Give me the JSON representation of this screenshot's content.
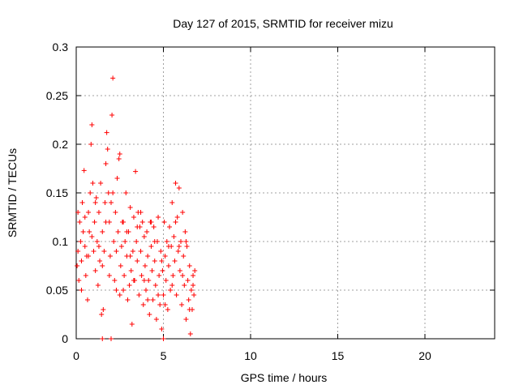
{
  "chart_data": {
    "type": "scatter",
    "title": "Day 127 of 2015, SRMTID for receiver mizu",
    "xlabel": "GPS time / hours",
    "ylabel": "SRMTID / TECUs",
    "xlim": [
      0,
      24
    ],
    "ylim": [
      0,
      0.3
    ],
    "x_ticks": [
      0,
      5,
      10,
      15,
      20
    ],
    "x_tick_labels": [
      "0",
      "5",
      "10",
      "15",
      "20"
    ],
    "y_ticks": [
      0,
      0.05,
      0.1,
      0.15,
      0.2,
      0.25,
      0.3
    ],
    "y_tick_labels": [
      "0",
      "0.05",
      "0.1",
      "0.15",
      "0.2",
      "0.25",
      "0.3"
    ],
    "grid": true,
    "marker": "+",
    "color": "#ff0000",
    "series": [
      {
        "points": [
          [
            0.05,
            0.075
          ],
          [
            0.1,
            0.09
          ],
          [
            0.15,
            0.06
          ],
          [
            0.2,
            0.12
          ],
          [
            0.25,
            0.1
          ],
          [
            0.3,
            0.08
          ],
          [
            0.35,
            0.14
          ],
          [
            0.4,
            0.11
          ],
          [
            0.45,
            0.173
          ],
          [
            0.5,
            0.095
          ],
          [
            0.55,
            0.065
          ],
          [
            0.6,
            0.085
          ],
          [
            0.65,
            0.04
          ],
          [
            0.7,
            0.13
          ],
          [
            0.75,
            0.11
          ],
          [
            0.8,
            0.15
          ],
          [
            0.85,
            0.2
          ],
          [
            0.9,
            0.22
          ],
          [
            0.95,
            0.16
          ],
          [
            1.0,
            0.09
          ],
          [
            1.05,
            0.12
          ],
          [
            1.1,
            0.07
          ],
          [
            1.15,
            0.145
          ],
          [
            1.2,
            0.1
          ],
          [
            1.25,
            0.055
          ],
          [
            1.3,
            0.13
          ],
          [
            1.35,
            0.08
          ],
          [
            1.4,
            0.16
          ],
          [
            1.45,
            0.025
          ],
          [
            1.5,
            0.11
          ],
          [
            1.55,
            0.03
          ],
          [
            1.6,
            0.09
          ],
          [
            1.65,
            0.14
          ],
          [
            1.7,
            0.18
          ],
          [
            1.75,
            0.212
          ],
          [
            1.8,
            0.195
          ],
          [
            1.85,
            0.15
          ],
          [
            1.9,
            0.12
          ],
          [
            1.95,
            0.085
          ],
          [
            2.0,
            0.14
          ],
          [
            2.05,
            0.23
          ],
          [
            2.1,
            0.268
          ],
          [
            2.15,
            0.1
          ],
          [
            2.2,
            0.06
          ],
          [
            2.25,
            0.13
          ],
          [
            2.3,
            0.05
          ],
          [
            2.35,
            0.165
          ],
          [
            2.4,
            0.11
          ],
          [
            2.45,
            0.185
          ],
          [
            2.5,
            0.19
          ],
          [
            2.55,
            0.075
          ],
          [
            2.6,
            0.095
          ],
          [
            2.65,
            0.12
          ],
          [
            2.7,
            0.05
          ],
          [
            2.75,
            0.065
          ],
          [
            2.8,
            0.1
          ],
          [
            2.85,
            0.15
          ],
          [
            2.9,
            0.085
          ],
          [
            2.95,
            0.04
          ],
          [
            3.0,
            0.11
          ],
          [
            3.05,
            0.055
          ],
          [
            3.1,
            0.135
          ],
          [
            3.15,
            0.07
          ],
          [
            3.2,
            0.015
          ],
          [
            3.25,
            0.09
          ],
          [
            3.3,
            0.125
          ],
          [
            3.35,
            0.06
          ],
          [
            3.4,
            0.172
          ],
          [
            3.45,
            0.1
          ],
          [
            3.5,
            0.08
          ],
          [
            3.55,
            0.13
          ],
          [
            3.6,
            0.045
          ],
          [
            3.65,
            0.115
          ],
          [
            3.7,
            0.09
          ],
          [
            3.75,
            0.065
          ],
          [
            3.8,
            0.12
          ],
          [
            3.85,
            0.035
          ],
          [
            3.9,
            0.105
          ],
          [
            3.95,
            0.075
          ],
          [
            4.0,
            0.05
          ],
          [
            4.05,
            0.11
          ],
          [
            4.1,
            0.085
          ],
          [
            4.15,
            0.06
          ],
          [
            4.2,
            0.025
          ],
          [
            4.25,
            0.12
          ],
          [
            4.3,
            0.095
          ],
          [
            4.35,
            0.07
          ],
          [
            4.4,
            0.04
          ],
          [
            4.45,
            0.115
          ],
          [
            4.5,
            0.08
          ],
          [
            4.55,
            0.055
          ],
          [
            4.6,
            0.02
          ],
          [
            4.65,
            0.1
          ],
          [
            4.7,
            0.125
          ],
          [
            4.75,
            0.065
          ],
          [
            4.8,
            0.035
          ],
          [
            4.85,
            0.09
          ],
          [
            4.9,
            0.01
          ],
          [
            4.95,
            0.07
          ],
          [
            5.0,
            0.045
          ],
          [
            5.05,
            0.12
          ],
          [
            5.1,
            0.085
          ],
          [
            5.15,
            0.06
          ],
          [
            5.2,
            0.1
          ],
          [
            5.25,
            0.03
          ],
          [
            5.3,
            0.075
          ],
          [
            5.35,
            0.115
          ],
          [
            5.4,
            0.05
          ],
          [
            5.45,
            0.095
          ],
          [
            5.5,
            0.14
          ],
          [
            5.55,
            0.065
          ],
          [
            5.6,
            0.105
          ],
          [
            5.65,
            0.08
          ],
          [
            5.7,
            0.16
          ],
          [
            5.75,
            0.045
          ],
          [
            5.8,
            0.125
          ],
          [
            5.85,
            0.09
          ],
          [
            5.9,
            0.155
          ],
          [
            5.95,
            0.07
          ],
          [
            6.0,
            0.1
          ],
          [
            6.05,
            0.035
          ],
          [
            6.1,
            0.13
          ],
          [
            6.15,
            0.085
          ],
          [
            6.2,
            0.055
          ],
          [
            6.25,
            0.11
          ],
          [
            6.3,
            0.02
          ],
          [
            6.35,
            0.095
          ],
          [
            6.4,
            0.06
          ],
          [
            6.45,
            0.04
          ],
          [
            6.5,
            0.075
          ],
          [
            6.55,
            0.005
          ],
          [
            6.6,
            0.05
          ],
          [
            6.65,
            0.03
          ],
          [
            6.7,
            0.065
          ],
          [
            6.75,
            0.045
          ],
          [
            6.8,
            0.07
          ],
          [
            0.1,
            0.13
          ],
          [
            0.3,
            0.05
          ],
          [
            0.5,
            0.125
          ],
          [
            0.7,
            0.085
          ],
          [
            0.9,
            0.105
          ],
          [
            1.1,
            0.14
          ],
          [
            1.3,
            0.095
          ],
          [
            1.5,
            0.075
          ],
          [
            1.7,
            0.12
          ],
          [
            1.9,
            0.065
          ],
          [
            2.1,
            0.15
          ],
          [
            2.3,
            0.09
          ],
          [
            2.5,
            0.045
          ],
          [
            2.7,
            0.12
          ],
          [
            2.9,
            0.11
          ],
          [
            3.1,
            0.085
          ],
          [
            3.3,
            0.06
          ],
          [
            3.5,
            0.115
          ],
          [
            3.7,
            0.13
          ],
          [
            3.9,
            0.06
          ],
          [
            4.1,
            0.04
          ],
          [
            4.3,
            0.12
          ],
          [
            4.5,
            0.1
          ],
          [
            4.7,
            0.045
          ],
          [
            4.9,
            0.08
          ],
          [
            5.1,
            0.035
          ],
          [
            5.3,
            0.095
          ],
          [
            5.5,
            0.055
          ],
          [
            5.7,
            0.12
          ],
          [
            5.9,
            0.095
          ],
          [
            6.1,
            0.065
          ],
          [
            6.3,
            0.1
          ],
          [
            6.5,
            0.03
          ],
          [
            6.7,
            0.055
          ],
          [
            1.5,
            0.0
          ],
          [
            2.0,
            0.0
          ],
          [
            5.0,
            0.0
          ]
        ]
      }
    ]
  }
}
